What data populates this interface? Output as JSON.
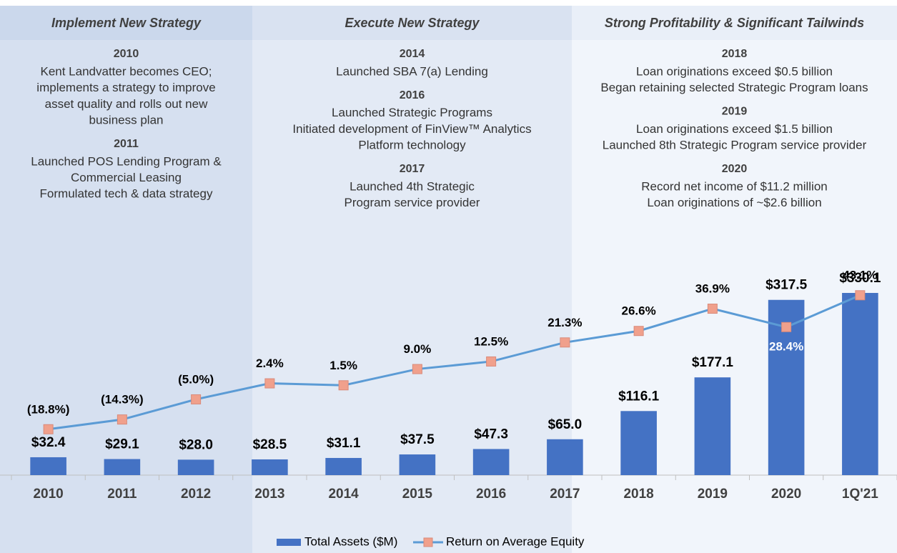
{
  "chart_data": {
    "type": "bar_line",
    "panels": [
      {
        "title": "Implement New Strategy",
        "color": "#d6e0f0",
        "header_color": "#cbd8ec",
        "span": [
          0,
          2
        ],
        "items": [
          {
            "year": "2010",
            "lines": [
              "Kent Landvatter becomes CEO;",
              "implements a strategy to improve",
              "asset quality and rolls out new",
              "business plan"
            ]
          },
          {
            "year": "2011",
            "lines": [
              "Launched POS Lending Program &",
              "Commercial Leasing",
              "Formulated tech & data strategy"
            ]
          }
        ]
      },
      {
        "title": "Execute New Strategy",
        "color": "#e3eaf5",
        "header_color": "#d9e2f1",
        "span": [
          3,
          7
        ],
        "items": [
          {
            "year": "2014",
            "lines": [
              "Launched SBA 7(a) Lending"
            ]
          },
          {
            "year": "2016",
            "lines": [
              "Launched Strategic Programs",
              "Initiated development of FinView™ Analytics",
              "Platform technology"
            ]
          },
          {
            "year": "2017",
            "lines": [
              "Launched 4th Strategic",
              "Program service provider"
            ]
          }
        ]
      },
      {
        "title": "Strong Profitability & Significant Tailwinds",
        "color": "#f1f5fb",
        "header_color": "#e9eff8",
        "span": [
          8,
          11
        ],
        "items": [
          {
            "year": "2018",
            "lines": [
              "Loan originations exceed $0.5 billion",
              "Began retaining selected Strategic Program loans"
            ]
          },
          {
            "year": "2019",
            "lines": [
              "Loan originations exceed $1.5 billion",
              "Launched 8th Strategic Program service provider"
            ]
          },
          {
            "year": "2020",
            "lines": [
              "Record net income of $11.2 million",
              "Loan originations of ~$2.6 billion"
            ]
          }
        ]
      }
    ],
    "categories": [
      "2010",
      "2011",
      "2012",
      "2013",
      "2014",
      "2015",
      "2016",
      "2017",
      "2018",
      "2019",
      "2020",
      "1Q'21"
    ],
    "series": [
      {
        "name": "Total Assets ($M)",
        "type": "bar",
        "color": "#4472c4",
        "values": [
          32.4,
          29.1,
          28.0,
          28.5,
          31.1,
          37.5,
          47.3,
          65.0,
          116.1,
          177.1,
          317.5,
          330.1
        ],
        "value_labels": [
          "$32.4",
          "$29.1",
          "$28.0",
          "$28.5",
          "$31.1",
          "$37.5",
          "$47.3",
          "$65.0",
          "$116.1",
          "$177.1",
          "$317.5",
          "$330.1"
        ]
      },
      {
        "name": "Return on Average Equity",
        "type": "line",
        "axis": "y2",
        "color": "#5b9bd5",
        "marker_color": "#f0a08c",
        "values": [
          -18.8,
          -14.3,
          -5.0,
          2.4,
          1.5,
          9.0,
          12.5,
          21.3,
          26.6,
          36.9,
          28.4,
          43.1
        ],
        "value_labels": [
          "(18.8%)",
          "(14.3%)",
          "(5.0%)",
          "2.4%",
          "1.5%",
          "9.0%",
          "12.5%",
          "21.3%",
          "26.6%",
          "36.9%",
          "28.4%",
          "43.1%"
        ]
      }
    ],
    "ylim": [
      0,
      400
    ],
    "y2lim": [
      -40,
      62
    ],
    "legend": "bottom"
  }
}
